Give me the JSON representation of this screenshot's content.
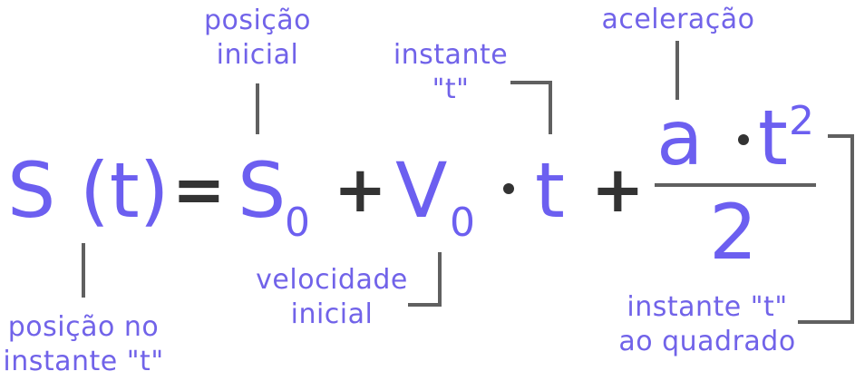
{
  "equation": {
    "lhs": "S (t)",
    "equals": "=",
    "s": "S",
    "s_sub": "0",
    "plus1": "+",
    "v": "V",
    "v_sub": "0",
    "t": "t",
    "plus2": "+",
    "num_a": "a",
    "num_t": "t",
    "num_exp": "2",
    "denominator": "2"
  },
  "labels": {
    "initial_position": [
      "posição",
      "inicial"
    ],
    "instant_t": [
      "instante",
      "\"t\""
    ],
    "acceleration": "aceleração",
    "position_at_t": [
      "posição no",
      "instante \"t\""
    ],
    "initial_velocity": [
      "velocidade",
      "inicial"
    ],
    "instant_t_squared": [
      "instante \"t\"",
      "ao quadrado"
    ]
  },
  "colors": {
    "accent": "#6c5ff0",
    "label": "#7163e9",
    "operator": "#333333",
    "line": "#555555"
  }
}
